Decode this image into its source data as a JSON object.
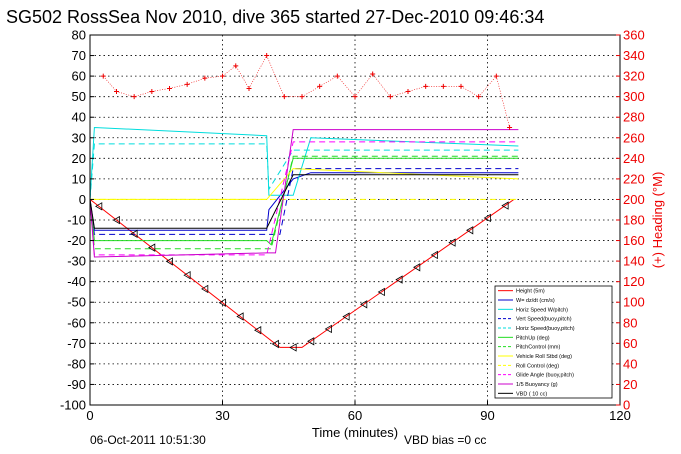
{
  "chart_data": {
    "type": "line",
    "title": "SG502 RossSea Nov 2010, dive 365 started 27-Dec-2010 09:46:34",
    "xlabel": "Time (minutes)",
    "ylabel_right": "(+) Heading (°M)",
    "xlim": [
      0,
      120
    ],
    "ylim_left": [
      -100,
      80
    ],
    "ylim_right": [
      0,
      360
    ],
    "x_ticks": [
      "0",
      "30",
      "60",
      "90",
      "120"
    ],
    "y_ticks_left": [
      "80",
      "70",
      "60",
      "50",
      "40",
      "30",
      "20",
      "10",
      "0",
      "-10",
      "-20",
      "-30",
      "-40",
      "-50",
      "-60",
      "-70",
      "-80",
      "-90",
      "-100"
    ],
    "y_ticks_right": [
      "360",
      "340",
      "320",
      "300",
      "280",
      "260",
      "240",
      "220",
      "200",
      "180",
      "160",
      "140",
      "120",
      "100",
      "80",
      "60",
      "40",
      "20",
      "0"
    ],
    "grid": true,
    "legend_position": "bottom-right",
    "footer_left": "06-Oct-2011 10:51:30",
    "footer_right": "VBD bias =0 cc",
    "colors": {
      "depth": "#ff0000",
      "w": "#0000cc",
      "hspeed": "#00dddd",
      "pitchup": "#22dd22",
      "roll": "#ffff00",
      "glide": "#ff00ff",
      "buoy": "#cc00cc",
      "heading": "#ee0000",
      "vbd": "#000000"
    },
    "series": [
      {
        "name": "Height (5m)",
        "x": [
          0,
          43,
          48,
          96
        ],
        "y": [
          0,
          -72,
          -72,
          0
        ]
      },
      {
        "name": "W= dz/dt (cm/s)",
        "x": [
          0,
          1,
          40,
          40.5,
          46,
          50,
          97
        ],
        "y": [
          0,
          -15,
          -15,
          -5,
          10,
          13,
          13
        ]
      },
      {
        "name": "Horiz Speed W/pitch)",
        "x": [
          0,
          1,
          40,
          40.5,
          46,
          50,
          97
        ],
        "y": [
          0,
          35,
          31,
          2,
          2,
          30,
          26
        ]
      },
      {
        "name": "Vert Speed(buoy,pitch)",
        "x": [
          0,
          1,
          40,
          43,
          46,
          97
        ],
        "y": [
          0,
          -17,
          -17,
          -17,
          15,
          15
        ]
      },
      {
        "name": "Horiz Speed(buoy,pitch)",
        "x": [
          0,
          1,
          40,
          40.5,
          46,
          97
        ],
        "y": [
          0,
          27,
          27,
          5,
          24,
          24
        ]
      },
      {
        "name": "PitchUp (deg)",
        "x": [
          0,
          1,
          40,
          41,
          46,
          97
        ],
        "y": [
          0,
          -20,
          -20,
          -22,
          20,
          20
        ]
      },
      {
        "name": "PitchControl (mm)",
        "x": [
          0,
          1,
          40,
          41,
          46,
          97
        ],
        "y": [
          0,
          -24,
          -24,
          -24,
          21,
          21
        ]
      },
      {
        "name": "Vehicle Roll Stbd (deg)",
        "x": [
          0,
          1,
          40,
          46,
          97
        ],
        "y": [
          0,
          0,
          0,
          15,
          10
        ]
      },
      {
        "name": "Roll Control (deg)",
        "x": [
          0,
          1,
          97
        ],
        "y": [
          0,
          0,
          0
        ]
      },
      {
        "name": "Glide Angle (buoy,pitch)",
        "x": [
          0,
          1,
          40,
          46,
          97
        ],
        "y": [
          0,
          -27,
          -27,
          28,
          28
        ]
      },
      {
        "name": "1/5 Buoyancy (g)",
        "x": [
          0,
          1,
          40,
          42,
          46,
          97
        ],
        "y": [
          0,
          -28,
          -26,
          -26,
          34,
          34
        ]
      },
      {
        "name": "VBD ( 10 cc)",
        "x": [
          0,
          1,
          40,
          46,
          97
        ],
        "y": [
          0,
          -14,
          -14,
          12,
          12
        ]
      }
    ],
    "heading_series": {
      "name": "(+) Heading (°M)",
      "x": [
        3,
        6,
        10,
        14,
        18,
        22,
        26,
        30,
        33,
        36,
        40,
        44,
        48,
        52,
        56,
        60,
        64,
        68,
        72,
        76,
        80,
        84,
        88,
        92,
        95
      ],
      "y": [
        320,
        305,
        300,
        305,
        308,
        312,
        318,
        320,
        330,
        308,
        340,
        300,
        300,
        310,
        320,
        300,
        322,
        300,
        305,
        310,
        310,
        310,
        300,
        320,
        270
      ]
    }
  }
}
